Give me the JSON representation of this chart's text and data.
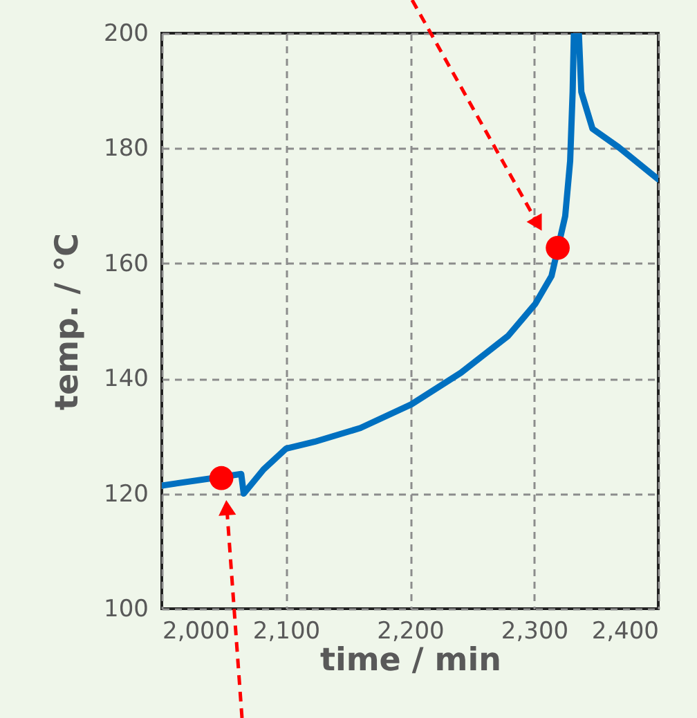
{
  "chart_data": {
    "type": "line",
    "xlabel": "time  / min",
    "ylabel": "temp. / ℃",
    "xlim": [
      2000,
      2400
    ],
    "xticks": [
      {
        "value": 2000,
        "label": "2,000"
      },
      {
        "value": 2100,
        "label": "2,100"
      },
      {
        "value": 2200,
        "label": "2,200"
      },
      {
        "value": 2300,
        "label": "2,300"
      },
      {
        "value": 2400,
        "label": "2,400"
      }
    ],
    "ylim": [
      100,
      200
    ],
    "yticks": [
      100,
      120,
      140,
      160,
      180,
      200
    ],
    "grid": true,
    "legend": false,
    "line_style": "solid",
    "series": [
      {
        "color": "#0070c0",
        "marker": "none",
        "x": [
          2000,
          2064,
          2066,
          2082,
          2100,
          2123,
          2160,
          2201,
          2241,
          2279,
          2301,
          2314,
          2325,
          2329,
          2331,
          2332,
          2336,
          2338,
          2347,
          2368,
          2400
        ],
        "values": [
          121.4,
          123.4,
          120.0,
          124.2,
          127.8,
          129.0,
          131.4,
          135.5,
          141.0,
          147.4,
          153.0,
          157.8,
          168.2,
          177.8,
          189.8,
          200,
          200,
          189.8,
          183.4,
          180.2,
          174.6
        ]
      },
      {
        "type": "scatter",
        "color": "#ff0000",
        "marker": "circle",
        "x": [
          2048
        ],
        "values": [
          122.7
        ]
      },
      {
        "type": "scatter",
        "color": "#ff0000",
        "marker": "circle",
        "x": [
          2319
        ],
        "values": [
          162.7
        ]
      }
    ]
  }
}
